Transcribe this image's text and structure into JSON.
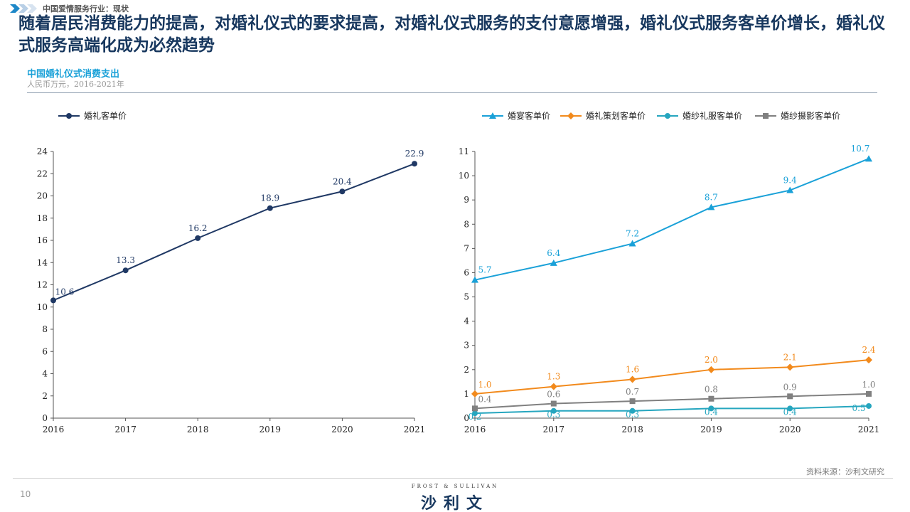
{
  "header": {
    "breadcrumb": "中国爱情服务行业：现状",
    "title": "随着居民消费能力的提高，对婚礼仪式的要求提高，对婚礼仪式服务的支付意愿增强，婚礼仪式服务客单价增长，婚礼仪式服务高端化成为必然趋势"
  },
  "section": {
    "title": "中国婚礼仪式消费支出",
    "subtitle": "人民币万元，2016-2021年"
  },
  "footer": {
    "source": "资料来源：沙利文研究",
    "page_number": "10",
    "logo_en": "FROST & SULLIVAN",
    "logo_cn": "沙利文"
  },
  "chart_data": [
    {
      "type": "line",
      "x": [
        "2016",
        "2017",
        "2018",
        "2019",
        "2020",
        "2021"
      ],
      "series": [
        {
          "name": "婚礼客单价",
          "values": [
            10.6,
            13.3,
            16.2,
            18.9,
            20.4,
            22.9
          ],
          "color": "#1f3864",
          "marker": "circle"
        }
      ],
      "ylim": [
        0,
        24
      ],
      "yticks": [
        0,
        2,
        4,
        6,
        8,
        10,
        12,
        14,
        16,
        18,
        20,
        22,
        24
      ],
      "legend": "top-left",
      "grid": false
    },
    {
      "type": "line",
      "x": [
        "2016",
        "2017",
        "2018",
        "2019",
        "2020",
        "2021"
      ],
      "series": [
        {
          "name": "婚宴客单价",
          "values": [
            5.7,
            6.4,
            7.2,
            8.7,
            9.4,
            10.7
          ],
          "color": "#1aa1d8",
          "marker": "triangle"
        },
        {
          "name": "婚礼策划客单价",
          "values": [
            1.0,
            1.3,
            1.6,
            2.0,
            2.1,
            2.4
          ],
          "color": "#f28a1c",
          "marker": "diamond"
        },
        {
          "name": "婚纱礼服客单价",
          "values": [
            0.2,
            0.3,
            0.3,
            0.4,
            0.4,
            0.5
          ],
          "color": "#26a6bf",
          "marker": "circle"
        },
        {
          "name": "婚纱摄影客单价",
          "values": [
            0.4,
            0.6,
            0.7,
            0.8,
            0.9,
            1.0
          ],
          "color": "#808080",
          "marker": "square"
        }
      ],
      "ylim": [
        0,
        11
      ],
      "yticks": [
        0,
        1,
        2,
        3,
        4,
        5,
        6,
        7,
        8,
        9,
        10,
        11
      ],
      "legend": "top-right",
      "grid": false
    }
  ]
}
